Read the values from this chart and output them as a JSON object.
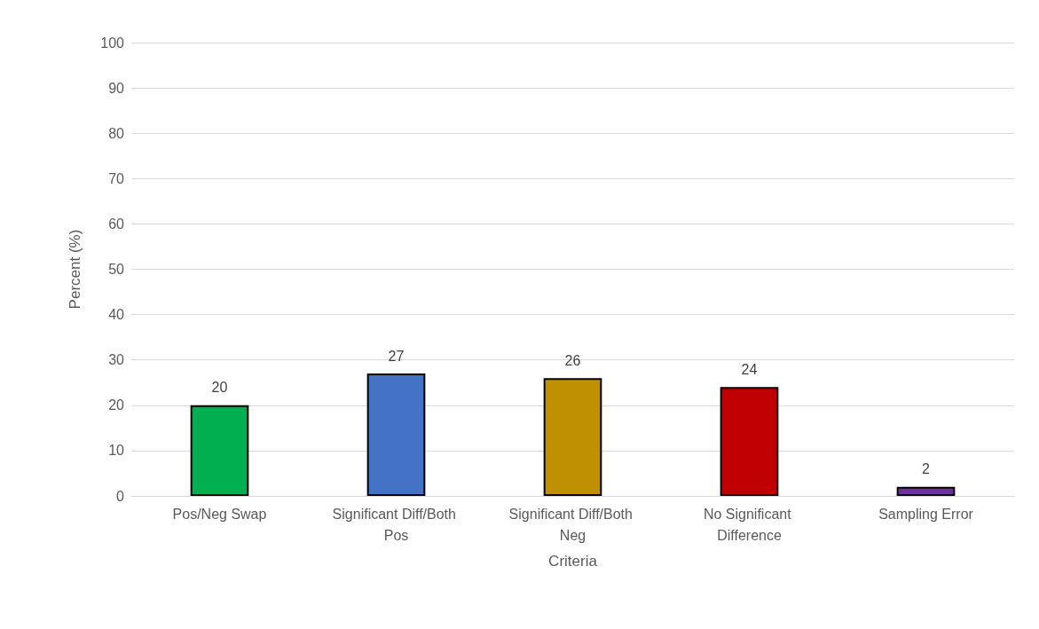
{
  "chart_data": {
    "type": "bar",
    "xlabel": "Criteria",
    "ylabel": "Percent (%)",
    "categories": [
      "Pos/Neg Swap",
      "Significant Diff/Both Pos",
      "Significant Diff/Both Neg",
      "No Significant Difference",
      "Sampling Error"
    ],
    "values": [
      20,
      27,
      26,
      24,
      2
    ],
    "colors": [
      "#00b050",
      "#4472c4",
      "#bf9000",
      "#c00000",
      "#7030a0"
    ],
    "ylim": [
      0,
      100
    ],
    "yticks": [
      0,
      10,
      20,
      30,
      40,
      50,
      60,
      70,
      80,
      90,
      100
    ],
    "grid": "y",
    "data_labels": true
  }
}
